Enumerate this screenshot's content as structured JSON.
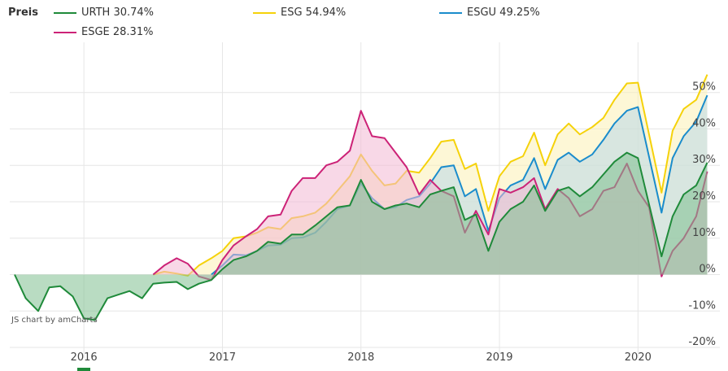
{
  "legend": {
    "title": "Preis",
    "items": [
      {
        "label": "URTH 30.74%",
        "color": "#1f8a3a"
      },
      {
        "label": "ESG 54.94%",
        "color": "#f5d20a"
      },
      {
        "label": "ESGU 49.25%",
        "color": "#1a8ccc"
      },
      {
        "label": "ESGE 28.31%",
        "color": "#cc2277"
      }
    ]
  },
  "credit": "JS chart by amCharts",
  "chart_data": {
    "type": "area",
    "x_ticks": [
      "2016",
      "2017",
      "2018",
      "2019",
      "2020"
    ],
    "y_ticks": [
      "50%",
      "40%",
      "30%",
      "20%",
      "10%",
      "0%",
      "-10%",
      "-20%"
    ],
    "ylim": [
      -22,
      62
    ],
    "xlim": [
      2015.5,
      2020.55
    ],
    "grid": true,
    "series": [
      {
        "name": "URTH",
        "color": "#1f8a3a",
        "fill": "#7fbf8f",
        "points": [
          [
            2015.5,
            0
          ],
          [
            2015.58,
            -6.5
          ],
          [
            2015.67,
            -10
          ],
          [
            2015.75,
            -3.5
          ],
          [
            2015.83,
            -3.2
          ],
          [
            2015.92,
            -6
          ],
          [
            2016.0,
            -12
          ],
          [
            2016.08,
            -12.5
          ],
          [
            2016.17,
            -6.5
          ],
          [
            2016.25,
            -5.5
          ],
          [
            2016.33,
            -4.5
          ],
          [
            2016.42,
            -6.5
          ],
          [
            2016.5,
            -2.5
          ],
          [
            2016.58,
            -2.2
          ],
          [
            2016.67,
            -2
          ],
          [
            2016.75,
            -4
          ],
          [
            2016.83,
            -2.5
          ],
          [
            2016.92,
            -1.5
          ],
          [
            2017.0,
            1.5
          ],
          [
            2017.08,
            4
          ],
          [
            2017.17,
            5
          ],
          [
            2017.25,
            6.5
          ],
          [
            2017.33,
            9
          ],
          [
            2017.42,
            8.5
          ],
          [
            2017.5,
            11
          ],
          [
            2017.58,
            11
          ],
          [
            2017.67,
            13.5
          ],
          [
            2017.75,
            16
          ],
          [
            2017.83,
            18.5
          ],
          [
            2017.92,
            19
          ],
          [
            2018.0,
            26
          ],
          [
            2018.08,
            20
          ],
          [
            2018.17,
            18
          ],
          [
            2018.25,
            19
          ],
          [
            2018.33,
            19.5
          ],
          [
            2018.42,
            18.5
          ],
          [
            2018.5,
            22
          ],
          [
            2018.58,
            23
          ],
          [
            2018.67,
            24
          ],
          [
            2018.75,
            15
          ],
          [
            2018.83,
            16.5
          ],
          [
            2018.92,
            6.5
          ],
          [
            2019.0,
            14.5
          ],
          [
            2019.08,
            18
          ],
          [
            2019.17,
            20
          ],
          [
            2019.25,
            24.5
          ],
          [
            2019.33,
            17.5
          ],
          [
            2019.42,
            23
          ],
          [
            2019.5,
            24
          ],
          [
            2019.58,
            21.5
          ],
          [
            2019.67,
            24
          ],
          [
            2019.75,
            27.5
          ],
          [
            2019.83,
            31
          ],
          [
            2019.92,
            33.5
          ],
          [
            2020.0,
            32
          ],
          [
            2020.17,
            5
          ],
          [
            2020.25,
            16
          ],
          [
            2020.33,
            22
          ],
          [
            2020.42,
            24.5
          ],
          [
            2020.5,
            30.74
          ]
        ]
      },
      {
        "name": "ESG",
        "color": "#f5d20a",
        "fill": "#fbf0b5",
        "points": [
          [
            2016.5,
            0
          ],
          [
            2016.58,
            0.8
          ],
          [
            2016.67,
            0.3
          ],
          [
            2016.75,
            -0.3
          ],
          [
            2016.83,
            2.5
          ],
          [
            2016.92,
            4.5
          ],
          [
            2017.0,
            6.5
          ],
          [
            2017.08,
            10
          ],
          [
            2017.17,
            10.5
          ],
          [
            2017.25,
            11.5
          ],
          [
            2017.33,
            13
          ],
          [
            2017.42,
            12.5
          ],
          [
            2017.5,
            15.5
          ],
          [
            2017.58,
            16
          ],
          [
            2017.67,
            17
          ],
          [
            2017.75,
            19.5
          ],
          [
            2017.83,
            23
          ],
          [
            2017.92,
            27
          ],
          [
            2018.0,
            33
          ],
          [
            2018.08,
            28.5
          ],
          [
            2018.17,
            24.5
          ],
          [
            2018.25,
            25
          ],
          [
            2018.33,
            28.5
          ],
          [
            2018.42,
            28
          ],
          [
            2018.5,
            32
          ],
          [
            2018.58,
            36.5
          ],
          [
            2018.67,
            37
          ],
          [
            2018.75,
            29
          ],
          [
            2018.83,
            30.5
          ],
          [
            2018.92,
            17.5
          ],
          [
            2019.0,
            27
          ],
          [
            2019.08,
            31
          ],
          [
            2019.17,
            32.5
          ],
          [
            2019.25,
            39
          ],
          [
            2019.33,
            30
          ],
          [
            2019.42,
            38.5
          ],
          [
            2019.5,
            41.5
          ],
          [
            2019.58,
            38.5
          ],
          [
            2019.67,
            40.5
          ],
          [
            2019.75,
            43
          ],
          [
            2019.83,
            48
          ],
          [
            2019.92,
            52.5
          ],
          [
            2020.0,
            52.7
          ],
          [
            2020.17,
            22.5
          ],
          [
            2020.25,
            39.5
          ],
          [
            2020.33,
            45.5
          ],
          [
            2020.42,
            48
          ],
          [
            2020.5,
            54.94
          ]
        ]
      },
      {
        "name": "ESGU",
        "color": "#1a8ccc",
        "fill": "#b9d9ea",
        "points": [
          [
            2016.92,
            0
          ],
          [
            2017.0,
            2.5
          ],
          [
            2017.08,
            5.5
          ],
          [
            2017.17,
            5.3
          ],
          [
            2017.25,
            6.5
          ],
          [
            2017.33,
            8
          ],
          [
            2017.42,
            8.2
          ],
          [
            2017.5,
            10
          ],
          [
            2017.58,
            10.2
          ],
          [
            2017.67,
            11.5
          ],
          [
            2017.75,
            14.5
          ],
          [
            2017.83,
            18
          ],
          [
            2017.92,
            19
          ],
          [
            2018.0,
            25
          ],
          [
            2018.08,
            21
          ],
          [
            2018.17,
            18
          ],
          [
            2018.25,
            18.5
          ],
          [
            2018.33,
            20.5
          ],
          [
            2018.42,
            21.5
          ],
          [
            2018.5,
            25
          ],
          [
            2018.58,
            29.5
          ],
          [
            2018.67,
            30
          ],
          [
            2018.75,
            21.5
          ],
          [
            2018.83,
            23.5
          ],
          [
            2018.92,
            12
          ],
          [
            2019.0,
            21
          ],
          [
            2019.08,
            24.5
          ],
          [
            2019.17,
            26
          ],
          [
            2019.25,
            32
          ],
          [
            2019.33,
            23.5
          ],
          [
            2019.42,
            31.5
          ],
          [
            2019.5,
            33.5
          ],
          [
            2019.58,
            31
          ],
          [
            2019.67,
            33
          ],
          [
            2019.75,
            37
          ],
          [
            2019.83,
            41.5
          ],
          [
            2019.92,
            45
          ],
          [
            2020.0,
            46
          ],
          [
            2020.17,
            17
          ],
          [
            2020.25,
            32
          ],
          [
            2020.33,
            38
          ],
          [
            2020.42,
            42
          ],
          [
            2020.5,
            49.25
          ]
        ]
      },
      {
        "name": "ESGE",
        "color": "#cc2277",
        "fill": "#f2b8d4",
        "points": [
          [
            2016.5,
            0
          ],
          [
            2016.58,
            2.5
          ],
          [
            2016.67,
            4.5
          ],
          [
            2016.75,
            3
          ],
          [
            2016.83,
            -0.5
          ],
          [
            2016.92,
            -1.5
          ],
          [
            2017.0,
            4
          ],
          [
            2017.08,
            8
          ],
          [
            2017.17,
            10.5
          ],
          [
            2017.25,
            12.5
          ],
          [
            2017.33,
            16
          ],
          [
            2017.42,
            16.5
          ],
          [
            2017.5,
            23
          ],
          [
            2017.58,
            26.5
          ],
          [
            2017.67,
            26.5
          ],
          [
            2017.75,
            30
          ],
          [
            2017.83,
            31
          ],
          [
            2017.92,
            34
          ],
          [
            2018.0,
            45
          ],
          [
            2018.08,
            38
          ],
          [
            2018.17,
            37.5
          ],
          [
            2018.25,
            33.5
          ],
          [
            2018.33,
            29.5
          ],
          [
            2018.42,
            22
          ],
          [
            2018.5,
            26
          ],
          [
            2018.58,
            23
          ],
          [
            2018.67,
            21.5
          ],
          [
            2018.75,
            11.5
          ],
          [
            2018.83,
            17.5
          ],
          [
            2018.92,
            11
          ],
          [
            2019.0,
            23.5
          ],
          [
            2019.08,
            22.5
          ],
          [
            2019.17,
            24
          ],
          [
            2019.25,
            26.5
          ],
          [
            2019.33,
            18
          ],
          [
            2019.42,
            23.5
          ],
          [
            2019.5,
            21
          ],
          [
            2019.58,
            16
          ],
          [
            2019.67,
            18
          ],
          [
            2019.75,
            23
          ],
          [
            2019.83,
            24
          ],
          [
            2019.92,
            30.5
          ],
          [
            2020.0,
            23
          ],
          [
            2020.08,
            18.5
          ],
          [
            2020.17,
            -0.5
          ],
          [
            2020.25,
            6.5
          ],
          [
            2020.33,
            10
          ],
          [
            2020.42,
            16
          ],
          [
            2020.5,
            28.31
          ]
        ]
      }
    ]
  }
}
